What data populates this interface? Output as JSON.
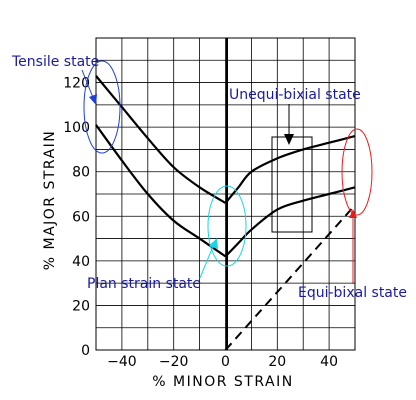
{
  "chart_data": {
    "type": "line",
    "xlabel": "% MINOR STRAIN",
    "ylabel": "% MAJOR STRAIN",
    "xlim": [
      -50,
      50
    ],
    "ylim": [
      0,
      140
    ],
    "grid": true,
    "x_ticks": [
      -40,
      -20,
      0,
      20,
      40
    ],
    "y_ticks": [
      0,
      20,
      40,
      60,
      80,
      100,
      120
    ],
    "series": [
      {
        "x": [
          -50,
          -40,
          -30,
          -20,
          -10,
          0,
          5,
          10,
          20,
          30,
          40,
          50
        ],
        "y": [
          123,
          109,
          95,
          82,
          73,
          66,
          73,
          80,
          86,
          90,
          93,
          96
        ]
      },
      {
        "x": [
          -50,
          -40,
          -30,
          -20,
          -10,
          0,
          5,
          10,
          20,
          30,
          40,
          50
        ],
        "y": [
          101,
          85,
          70,
          58,
          50,
          42,
          48,
          54,
          63,
          67,
          70,
          73
        ]
      },
      {
        "x": [
          0,
          50
        ],
        "y": [
          0,
          65
        ],
        "dashed": true
      }
    ],
    "annotations": [
      {
        "text": "Tensile state"
      },
      {
        "text": "Unequi-bixial state"
      },
      {
        "text": "Plan strain state"
      },
      {
        "text": "Equi-bixal state"
      }
    ],
    "annotation_colors": {
      "tensile": "#1f3fd8",
      "unequi": "#000000",
      "plane": "#19d3e6",
      "equi": "#e81c1c"
    }
  }
}
